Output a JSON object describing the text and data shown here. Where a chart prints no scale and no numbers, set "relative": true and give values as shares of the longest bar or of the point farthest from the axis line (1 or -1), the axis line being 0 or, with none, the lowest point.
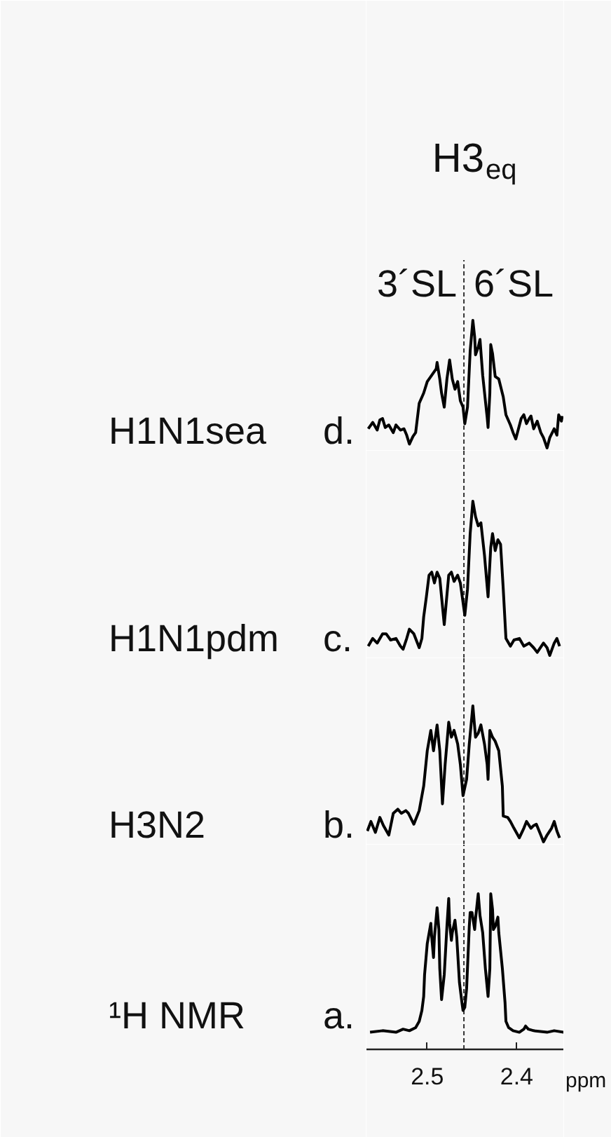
{
  "chart_data": [
    {
      "type": "line",
      "title": "H3$_{eq}$",
      "subtitle": "d.",
      "ylabel": "H1N1sea",
      "annotations": [
        "3´SL",
        "6´SL"
      ],
      "relative": true,
      "xlim": [
        2.568,
        2.347
      ],
      "tick_labels": false,
      "ref_lines": [
        {
          "axis": "x",
          "value": 2.459,
          "line_style": "dashed",
          "color": "#333333"
        }
      ],
      "color": "#000000",
      "x": [
        2.566,
        2.561,
        2.556,
        2.553,
        2.55,
        2.547,
        2.543,
        2.538,
        2.535,
        2.53,
        2.526,
        2.523,
        2.52,
        2.516,
        2.513,
        2.509,
        2.504,
        2.5,
        2.496,
        2.493,
        2.49,
        2.489,
        2.486,
        2.484,
        2.481,
        2.478,
        2.475,
        2.472,
        2.469,
        2.466,
        2.463,
        2.46,
        2.458,
        2.455,
        2.452,
        2.449,
        2.447,
        2.446,
        2.443,
        2.441,
        2.438,
        2.435,
        2.433,
        2.432,
        2.43,
        2.429,
        2.427,
        2.424,
        2.42,
        2.415,
        2.412,
        2.407,
        2.404,
        2.401,
        2.398,
        2.395,
        2.392,
        2.389,
        2.386,
        2.384,
        2.381,
        2.377,
        2.373,
        2.37,
        2.366,
        2.363,
        2.358,
        2.355,
        2.353,
        2.35,
        2.349
      ],
      "values": [
        0.15,
        0.2,
        0.14,
        0.22,
        0.23,
        0.16,
        0.18,
        0.12,
        0.18,
        0.14,
        0.15,
        0.1,
        0.03,
        0.09,
        0.12,
        0.35,
        0.43,
        0.52,
        0.56,
        0.59,
        0.62,
        0.67,
        0.54,
        0.43,
        0.32,
        0.54,
        0.69,
        0.54,
        0.46,
        0.52,
        0.37,
        0.32,
        0.19,
        0.32,
        0.76,
        1.0,
        0.87,
        0.73,
        0.79,
        0.85,
        0.57,
        0.37,
        0.24,
        0.16,
        0.43,
        0.81,
        0.74,
        0.56,
        0.54,
        0.4,
        0.26,
        0.18,
        0.12,
        0.07,
        0.15,
        0.23,
        0.26,
        0.19,
        0.23,
        0.25,
        0.15,
        0.21,
        0.12,
        0.08,
        0,
        0.08,
        0.15,
        0.1,
        0.26,
        0.21,
        0.25
      ]
    },
    {
      "type": "line",
      "subtitle": "c.",
      "ylabel": "H1N1pdm",
      "relative": true,
      "xlim": [
        2.568,
        2.347
      ],
      "tick_labels": false,
      "ref_lines": [
        {
          "axis": "x",
          "value": 2.459,
          "line_style": "dashed",
          "color": "#333333"
        }
      ],
      "color": "#000000",
      "x": [
        2.566,
        2.561,
        2.556,
        2.55,
        2.546,
        2.541,
        2.535,
        2.53,
        2.527,
        2.523,
        2.52,
        2.515,
        2.509,
        2.506,
        2.504,
        2.501,
        2.498,
        2.495,
        2.492,
        2.489,
        2.486,
        2.481,
        2.476,
        2.473,
        2.47,
        2.466,
        2.463,
        2.458,
        2.455,
        2.452,
        2.449,
        2.446,
        2.443,
        2.44,
        2.436,
        2.432,
        2.429,
        2.427,
        2.424,
        2.421,
        2.418,
        2.415,
        2.412,
        2.407,
        2.403,
        2.397,
        2.392,
        2.386,
        2.381,
        2.377,
        2.37,
        2.366,
        2.363,
        2.358,
        2.355,
        2.352
      ],
      "values": [
        0.06,
        0.11,
        0.08,
        0.14,
        0.14,
        0.1,
        0.11,
        0.06,
        0.04,
        0.11,
        0.17,
        0.14,
        0.05,
        0.11,
        0.25,
        0.38,
        0.52,
        0.54,
        0.47,
        0.54,
        0.5,
        0.2,
        0.52,
        0.54,
        0.48,
        0.52,
        0.47,
        0.26,
        0.43,
        0.79,
        1.0,
        0.9,
        0.84,
        0.86,
        0.65,
        0.38,
        0.7,
        0.79,
        0.68,
        0.75,
        0.72,
        0.43,
        0.11,
        0.06,
        0.1,
        0.11,
        0.06,
        0.08,
        0.05,
        0.02,
        0.08,
        0.05,
        0,
        0.08,
        0.11,
        0.06
      ]
    },
    {
      "type": "line",
      "subtitle": "b.",
      "ylabel": "H3N2",
      "relative": true,
      "xlim": [
        2.568,
        2.347
      ],
      "tick_labels": false,
      "ref_lines": [
        {
          "axis": "x",
          "value": 2.459,
          "line_style": "dashed",
          "color": "#333333"
        }
      ],
      "color": "#000000",
      "x": [
        2.567,
        2.563,
        2.558,
        2.553,
        2.549,
        2.543,
        2.538,
        2.533,
        2.529,
        2.524,
        2.521,
        2.515,
        2.509,
        2.504,
        2.5,
        2.496,
        2.493,
        2.489,
        2.486,
        2.483,
        2.48,
        2.476,
        2.473,
        2.47,
        2.466,
        2.463,
        2.46,
        2.456,
        2.453,
        2.449,
        2.446,
        2.443,
        2.44,
        2.436,
        2.433,
        2.432,
        2.43,
        2.427,
        2.424,
        2.42,
        2.416,
        2.415,
        2.41,
        2.407,
        2.403,
        2.397,
        2.392,
        2.389,
        2.384,
        2.381,
        2.378,
        2.373,
        2.37,
        2.366,
        2.361,
        2.358,
        2.355,
        2.352
      ],
      "values": [
        0.08,
        0.15,
        0.07,
        0.18,
        0.12,
        0.05,
        0.21,
        0.24,
        0.21,
        0.23,
        0.21,
        0.13,
        0.23,
        0.41,
        0.67,
        0.82,
        0.67,
        0.86,
        0.67,
        0.28,
        0.57,
        0.88,
        0.77,
        0.82,
        0.72,
        0.57,
        0.34,
        0.46,
        0.72,
        1.0,
        0.77,
        0.8,
        0.86,
        0.72,
        0.57,
        0.46,
        0.82,
        0.77,
        0.74,
        0.67,
        0.41,
        0.19,
        0.18,
        0.15,
        0.1,
        0.03,
        0.1,
        0.15,
        0.1,
        0.12,
        0.13,
        0.05,
        0,
        0.05,
        0.1,
        0.15,
        0.08,
        0.03
      ]
    },
    {
      "type": "line",
      "subtitle": "a.",
      "ylabel": "¹H NMR",
      "xlabel": "ppm",
      "relative": true,
      "xlim": [
        2.568,
        2.347
      ],
      "xticks": [
        2.5,
        2.4
      ],
      "tick_labels": "x",
      "ref_lines": [
        {
          "axis": "x",
          "value": 2.459,
          "line_style": "dashed",
          "color": "#333333"
        }
      ],
      "color": "#000000",
      "x": [
        2.564,
        2.55,
        2.535,
        2.527,
        2.52,
        2.513,
        2.509,
        2.506,
        2.504,
        2.503,
        2.5,
        2.496,
        2.495,
        2.493,
        2.492,
        2.489,
        2.487,
        2.486,
        2.484,
        2.481,
        2.478,
        2.476,
        2.475,
        2.473,
        2.472,
        2.469,
        2.467,
        2.464,
        2.461,
        2.46,
        2.458,
        2.456,
        2.453,
        2.452,
        2.45,
        2.447,
        2.446,
        2.443,
        2.441,
        2.438,
        2.435,
        2.432,
        2.43,
        2.429,
        2.427,
        2.426,
        2.424,
        2.421,
        2.42,
        2.416,
        2.413,
        2.412,
        2.409,
        2.404,
        2.397,
        2.392,
        2.39,
        2.387,
        2.381,
        2.366,
        2.358,
        2.347
      ],
      "values": [
        0.11,
        0.12,
        0.11,
        0.13,
        0.12,
        0.14,
        0.18,
        0.25,
        0.34,
        0.48,
        0.68,
        0.81,
        0.72,
        0.59,
        0.72,
        0.91,
        0.77,
        0.52,
        0.32,
        0.48,
        0.79,
        0.97,
        0.81,
        0.7,
        0.75,
        0.83,
        0.72,
        0.43,
        0.29,
        0.25,
        0.27,
        0.39,
        0.79,
        0.88,
        0.88,
        0.77,
        0.84,
        1.0,
        0.86,
        0.75,
        0.52,
        0.34,
        0.52,
        1.0,
        0.9,
        0.77,
        0.79,
        0.85,
        0.75,
        0.52,
        0.3,
        0.18,
        0.14,
        0.12,
        0.11,
        0.13,
        0.15,
        0.13,
        0.12,
        0.11,
        0.12,
        0.11
      ]
    }
  ]
}
